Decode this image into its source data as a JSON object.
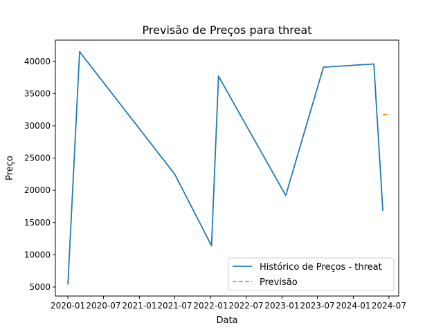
{
  "chart_data": {
    "type": "line",
    "title": "Previsão de Preços para threat",
    "xlabel": "Data",
    "ylabel": "Preço",
    "xlim": [
      "2019-10-29",
      "2024-08-20"
    ],
    "ylim": [
      3600,
      43300
    ],
    "x_ticks": [
      "2020-01",
      "2020-07",
      "2021-01",
      "2021-07",
      "2022-01",
      "2022-07",
      "2023-01",
      "2023-07",
      "2024-01",
      "2024-07"
    ],
    "y_ticks": [
      5000,
      10000,
      15000,
      20000,
      25000,
      30000,
      35000,
      40000
    ],
    "grid": false,
    "legend_position": "lower-right",
    "series": [
      {
        "name": "Histórico de Preços - threat",
        "color": "#1f77b4",
        "style": "solid",
        "points": [
          {
            "x": "2020-01-01",
            "y": 5400
          },
          {
            "x": "2020-03-01",
            "y": 41500
          },
          {
            "x": "2021-07-01",
            "y": 22500
          },
          {
            "x": "2022-01-05",
            "y": 11400
          },
          {
            "x": "2022-02-10",
            "y": 37700
          },
          {
            "x": "2023-01-20",
            "y": 19200
          },
          {
            "x": "2023-08-01",
            "y": 39100
          },
          {
            "x": "2024-04-15",
            "y": 39600
          },
          {
            "x": "2024-05-31",
            "y": 16800
          }
        ]
      },
      {
        "name": "Previsão",
        "color": "#ff7f0e",
        "style": "dashed",
        "points": [
          {
            "x": "2024-05-31",
            "y": 31700
          },
          {
            "x": "2024-06-30",
            "y": 31800
          }
        ]
      }
    ]
  }
}
